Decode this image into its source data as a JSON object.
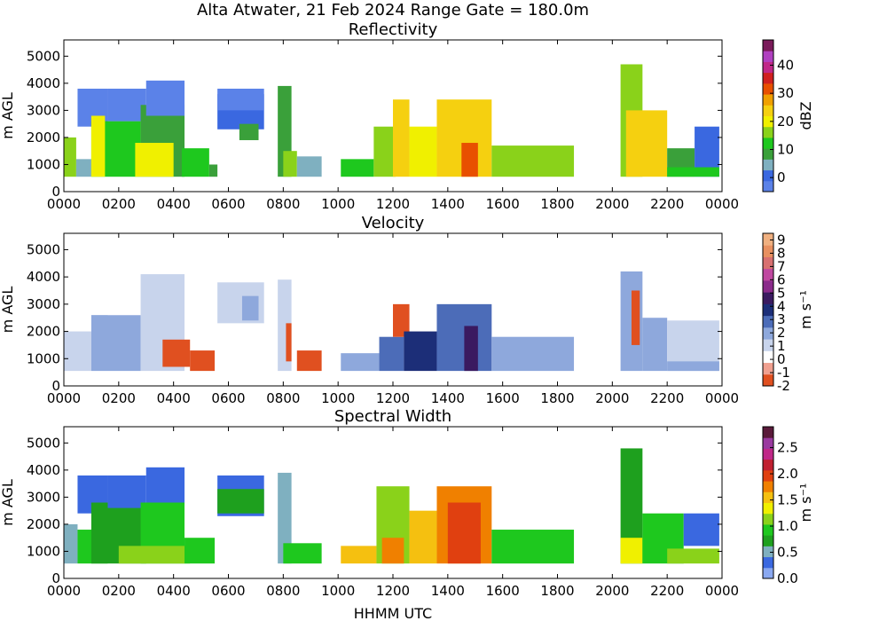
{
  "title": "Alta Atwater, 21 Feb 2024 Range Gate = 180.0m",
  "xlabel": "HHMM UTC",
  "chart_data": [
    {
      "type": "heatmap",
      "title": "Reflectivity",
      "ylabel": "m AGL",
      "colorbar_label": "dBZ",
      "x_ticks": [
        "0000",
        "0200",
        "0400",
        "0600",
        "0800",
        "1000",
        "1200",
        "1400",
        "1600",
        "1800",
        "2000",
        "2200",
        "0000"
      ],
      "x_tick_hours": [
        0,
        2,
        4,
        6,
        8,
        10,
        12,
        14,
        16,
        18,
        20,
        22,
        24
      ],
      "xlim_hours": [
        0,
        24
      ],
      "y_ticks": [
        0,
        1000,
        2000,
        3000,
        4000,
        5000
      ],
      "ylim": [
        0,
        5600
      ],
      "c_ticks": [
        0,
        10,
        20,
        30,
        40
      ],
      "c_tick_labels": [
        "0",
        "10",
        "20",
        "30",
        "40"
      ],
      "clim": [
        -5,
        49
      ],
      "colors": [
        "#5b82e8",
        "#3a68e0",
        "#7fb0c0",
        "#3aa03a",
        "#1ec81e",
        "#8ad21a",
        "#f0f000",
        "#f5d010",
        "#f0a000",
        "#e85000",
        "#d02020",
        "#c02888",
        "#b040c0",
        "#7a1a5a"
      ],
      "cells": [
        {
          "t0": 0.0,
          "t1": 0.45,
          "h0": 550,
          "h1": 2000,
          "v": 18
        },
        {
          "t0": 0.45,
          "t1": 1.0,
          "h0": 550,
          "h1": 1200,
          "v": 6
        },
        {
          "t0": 0.5,
          "t1": 1.6,
          "h0": 2400,
          "h1": 3800,
          "v": -2
        },
        {
          "t0": 1.0,
          "t1": 2.8,
          "h0": 550,
          "h1": 2600,
          "v": 12
        },
        {
          "t0": 1.0,
          "t1": 1.5,
          "h0": 550,
          "h1": 2800,
          "v": 20
        },
        {
          "t0": 1.6,
          "t1": 3.0,
          "h0": 2600,
          "h1": 3800,
          "v": -3
        },
        {
          "t0": 2.8,
          "t1": 4.4,
          "h0": 550,
          "h1": 3200,
          "v": 10
        },
        {
          "t0": 3.0,
          "t1": 4.4,
          "h0": 2800,
          "h1": 4100,
          "v": -2
        },
        {
          "t0": 2.6,
          "t1": 4.0,
          "h0": 550,
          "h1": 1800,
          "v": 20
        },
        {
          "t0": 4.3,
          "t1": 5.3,
          "h0": 550,
          "h1": 1600,
          "v": 12
        },
        {
          "t0": 5.3,
          "t1": 5.6,
          "h0": 550,
          "h1": 1000,
          "v": 8
        },
        {
          "t0": 5.6,
          "t1": 7.3,
          "h0": 2300,
          "h1": 3600,
          "v": 2
        },
        {
          "t0": 5.6,
          "t1": 7.3,
          "h0": 3000,
          "h1": 3800,
          "v": -2
        },
        {
          "t0": 6.4,
          "t1": 7.1,
          "h0": 1900,
          "h1": 2500,
          "v": 8
        },
        {
          "t0": 7.8,
          "t1": 8.3,
          "h0": 550,
          "h1": 3900,
          "v": 8
        },
        {
          "t0": 8.0,
          "t1": 8.5,
          "h0": 550,
          "h1": 1500,
          "v": 18
        },
        {
          "t0": 8.5,
          "t1": 9.4,
          "h0": 550,
          "h1": 1300,
          "v": 4
        },
        {
          "t0": 10.1,
          "t1": 11.3,
          "h0": 550,
          "h1": 1200,
          "v": 12
        },
        {
          "t0": 11.3,
          "t1": 12.1,
          "h0": 550,
          "h1": 2400,
          "v": 16
        },
        {
          "t0": 12.0,
          "t1": 12.6,
          "h0": 550,
          "h1": 3400,
          "v": 22
        },
        {
          "t0": 12.6,
          "t1": 13.6,
          "h0": 550,
          "h1": 2400,
          "v": 20
        },
        {
          "t0": 13.6,
          "t1": 15.6,
          "h0": 550,
          "h1": 3400,
          "v": 22
        },
        {
          "t0": 14.5,
          "t1": 15.1,
          "h0": 550,
          "h1": 1800,
          "v": 32
        },
        {
          "t0": 15.6,
          "t1": 18.6,
          "h0": 550,
          "h1": 1700,
          "v": 18
        },
        {
          "t0": 20.3,
          "t1": 21.1,
          "h0": 550,
          "h1": 4700,
          "v": 16
        },
        {
          "t0": 20.5,
          "t1": 22.0,
          "h0": 550,
          "h1": 3000,
          "v": 22
        },
        {
          "t0": 22.0,
          "t1": 23.0,
          "h0": 550,
          "h1": 1600,
          "v": 10
        },
        {
          "t0": 23.0,
          "t1": 23.9,
          "h0": 550,
          "h1": 2400,
          "v": 0
        },
        {
          "t0": 22.0,
          "t1": 23.9,
          "h0": 550,
          "h1": 900,
          "v": 14
        }
      ]
    },
    {
      "type": "heatmap",
      "title": "Velocity",
      "ylabel": "m AGL",
      "colorbar_label": "m s⁻¹",
      "x_ticks": [
        "0000",
        "0200",
        "0400",
        "0600",
        "0800",
        "1000",
        "1200",
        "1400",
        "1600",
        "1800",
        "2000",
        "2200",
        "0000"
      ],
      "x_tick_hours": [
        0,
        2,
        4,
        6,
        8,
        10,
        12,
        14,
        16,
        18,
        20,
        22,
        24
      ],
      "xlim_hours": [
        0,
        24
      ],
      "y_ticks": [
        0,
        1000,
        2000,
        3000,
        4000,
        5000
      ],
      "ylim": [
        0,
        5600
      ],
      "c_ticks": [
        -2,
        -1,
        0,
        1,
        2,
        3,
        4,
        5,
        6,
        7,
        8,
        9
      ],
      "c_tick_labels": [
        "-2",
        "-1",
        "0",
        "1",
        "2",
        "3",
        "4",
        "5",
        "6",
        "7",
        "8",
        "9"
      ],
      "clim": [
        -2,
        9.5
      ],
      "colors": [
        "#e05020",
        "#f0a090",
        "#ffffff",
        "#c8d4ec",
        "#8ea8dc",
        "#4c6cb8",
        "#1c2e78",
        "#3a1a60",
        "#8a2a8a",
        "#c048a0",
        "#d87070",
        "#e89060",
        "#f0b080"
      ],
      "cells": [
        {
          "t0": 0.0,
          "t1": 1.0,
          "h0": 550,
          "h1": 2000,
          "v": 1
        },
        {
          "t0": 0.5,
          "t1": 1.6,
          "h0": 2400,
          "h1": 3800,
          "v": 0.6
        },
        {
          "t0": 1.0,
          "t1": 2.8,
          "h0": 550,
          "h1": 2600,
          "v": 1.6
        },
        {
          "t0": 1.6,
          "t1": 3.0,
          "h0": 2600,
          "h1": 3800,
          "v": 0.6
        },
        {
          "t0": 2.8,
          "t1": 4.4,
          "h0": 550,
          "h1": 4100,
          "v": 0.8
        },
        {
          "t0": 3.6,
          "t1": 4.6,
          "h0": 700,
          "h1": 1700,
          "v": -1.8
        },
        {
          "t0": 4.6,
          "t1": 5.5,
          "h0": 550,
          "h1": 1300,
          "v": -1.2
        },
        {
          "t0": 5.6,
          "t1": 7.3,
          "h0": 2300,
          "h1": 3800,
          "v": 1.2
        },
        {
          "t0": 6.5,
          "t1": 7.1,
          "h0": 2400,
          "h1": 3300,
          "v": 2.2
        },
        {
          "t0": 7.8,
          "t1": 8.3,
          "h0": 550,
          "h1": 3900,
          "v": 1.2
        },
        {
          "t0": 8.1,
          "t1": 8.3,
          "h0": 900,
          "h1": 2300,
          "v": -1.5
        },
        {
          "t0": 8.5,
          "t1": 9.4,
          "h0": 550,
          "h1": 1300,
          "v": -1.8
        },
        {
          "t0": 10.1,
          "t1": 11.5,
          "h0": 550,
          "h1": 1200,
          "v": 1.8
        },
        {
          "t0": 11.5,
          "t1": 12.4,
          "h0": 550,
          "h1": 1800,
          "v": 2.6
        },
        {
          "t0": 12.0,
          "t1": 12.6,
          "h0": 1800,
          "h1": 3000,
          "v": -1.2
        },
        {
          "t0": 12.4,
          "t1": 13.6,
          "h0": 550,
          "h1": 2000,
          "v": 3.4
        },
        {
          "t0": 13.6,
          "t1": 15.6,
          "h0": 550,
          "h1": 3000,
          "v": 3.2
        },
        {
          "t0": 14.6,
          "t1": 15.1,
          "h0": 550,
          "h1": 2200,
          "v": 4.6
        },
        {
          "t0": 15.6,
          "t1": 18.6,
          "h0": 550,
          "h1": 1800,
          "v": 2.2
        },
        {
          "t0": 20.3,
          "t1": 21.1,
          "h0": 550,
          "h1": 4200,
          "v": 1.6
        },
        {
          "t0": 20.7,
          "t1": 21.0,
          "h0": 1500,
          "h1": 3500,
          "v": -1.8
        },
        {
          "t0": 21.1,
          "t1": 22.0,
          "h0": 550,
          "h1": 2500,
          "v": 1.8
        },
        {
          "t0": 22.0,
          "t1": 23.9,
          "h0": 550,
          "h1": 2400,
          "v": 0.8
        },
        {
          "t0": 22.0,
          "t1": 23.9,
          "h0": 550,
          "h1": 900,
          "v": 2.4
        }
      ]
    },
    {
      "type": "heatmap",
      "title": "Spectral Width",
      "ylabel": "m AGL",
      "colorbar_label": "m s⁻¹",
      "x_ticks": [
        "0000",
        "0200",
        "0400",
        "0600",
        "0800",
        "1000",
        "1200",
        "1400",
        "1600",
        "1800",
        "2000",
        "2200",
        "0000"
      ],
      "x_tick_hours": [
        0,
        2,
        4,
        6,
        8,
        10,
        12,
        14,
        16,
        18,
        20,
        22,
        24
      ],
      "xlim_hours": [
        0,
        24
      ],
      "y_ticks": [
        0,
        1000,
        2000,
        3000,
        4000,
        5000
      ],
      "ylim": [
        0,
        5600
      ],
      "c_ticks": [
        0.0,
        0.5,
        1.0,
        1.5,
        2.0,
        2.5
      ],
      "c_tick_labels": [
        "0.0",
        "0.5",
        "1.0",
        "1.5",
        "2.0",
        "2.5"
      ],
      "clim": [
        0,
        2.9
      ],
      "colors": [
        "#8aa8f0",
        "#3a68e0",
        "#7fb0c0",
        "#1ea01e",
        "#1ec81e",
        "#8ad21a",
        "#f0f000",
        "#f5c010",
        "#f08000",
        "#e04010",
        "#c02030",
        "#c02888",
        "#9a3aa0",
        "#5a1a3a"
      ],
      "cells": [
        {
          "t0": 0.0,
          "t1": 0.5,
          "h0": 550,
          "h1": 2000,
          "v": 0.6
        },
        {
          "t0": 0.5,
          "t1": 1.6,
          "h0": 550,
          "h1": 1800,
          "v": 0.9
        },
        {
          "t0": 0.5,
          "t1": 1.6,
          "h0": 2400,
          "h1": 3800,
          "v": 0.3
        },
        {
          "t0": 1.0,
          "t1": 3.0,
          "h0": 550,
          "h1": 2800,
          "v": 0.8
        },
        {
          "t0": 1.6,
          "t1": 3.0,
          "h0": 2600,
          "h1": 3800,
          "v": 0.3
        },
        {
          "t0": 3.0,
          "t1": 4.4,
          "h0": 2800,
          "h1": 4100,
          "v": 0.3
        },
        {
          "t0": 2.8,
          "t1": 4.4,
          "h0": 550,
          "h1": 2800,
          "v": 0.85
        },
        {
          "t0": 2.0,
          "t1": 4.6,
          "h0": 550,
          "h1": 1200,
          "v": 1.2
        },
        {
          "t0": 4.4,
          "t1": 5.5,
          "h0": 550,
          "h1": 1500,
          "v": 0.9
        },
        {
          "t0": 5.6,
          "t1": 7.3,
          "h0": 2300,
          "h1": 3800,
          "v": 0.3
        },
        {
          "t0": 5.6,
          "t1": 7.3,
          "h0": 2400,
          "h1": 3300,
          "v": 0.7
        },
        {
          "t0": 7.8,
          "t1": 8.3,
          "h0": 550,
          "h1": 3900,
          "v": 0.6
        },
        {
          "t0": 8.0,
          "t1": 9.4,
          "h0": 550,
          "h1": 1300,
          "v": 0.9
        },
        {
          "t0": 10.1,
          "t1": 11.4,
          "h0": 550,
          "h1": 1200,
          "v": 1.6
        },
        {
          "t0": 11.4,
          "t1": 12.6,
          "h0": 550,
          "h1": 3400,
          "v": 1.1
        },
        {
          "t0": 11.6,
          "t1": 12.4,
          "h0": 550,
          "h1": 1500,
          "v": 1.7
        },
        {
          "t0": 12.6,
          "t1": 13.6,
          "h0": 550,
          "h1": 2500,
          "v": 1.5
        },
        {
          "t0": 13.6,
          "t1": 15.6,
          "h0": 550,
          "h1": 3400,
          "v": 1.7
        },
        {
          "t0": 14.0,
          "t1": 15.2,
          "h0": 550,
          "h1": 2800,
          "v": 2.0
        },
        {
          "t0": 15.6,
          "t1": 18.6,
          "h0": 550,
          "h1": 1800,
          "v": 0.9
        },
        {
          "t0": 20.3,
          "t1": 21.1,
          "h0": 550,
          "h1": 4800,
          "v": 0.8
        },
        {
          "t0": 20.3,
          "t1": 21.1,
          "h0": 550,
          "h1": 1500,
          "v": 1.4
        },
        {
          "t0": 21.1,
          "t1": 22.6,
          "h0": 550,
          "h1": 2400,
          "v": 0.9
        },
        {
          "t0": 22.6,
          "t1": 23.9,
          "h0": 1200,
          "h1": 2400,
          "v": 0.3
        },
        {
          "t0": 22.0,
          "t1": 23.9,
          "h0": 550,
          "h1": 1100,
          "v": 1.1
        }
      ]
    }
  ]
}
